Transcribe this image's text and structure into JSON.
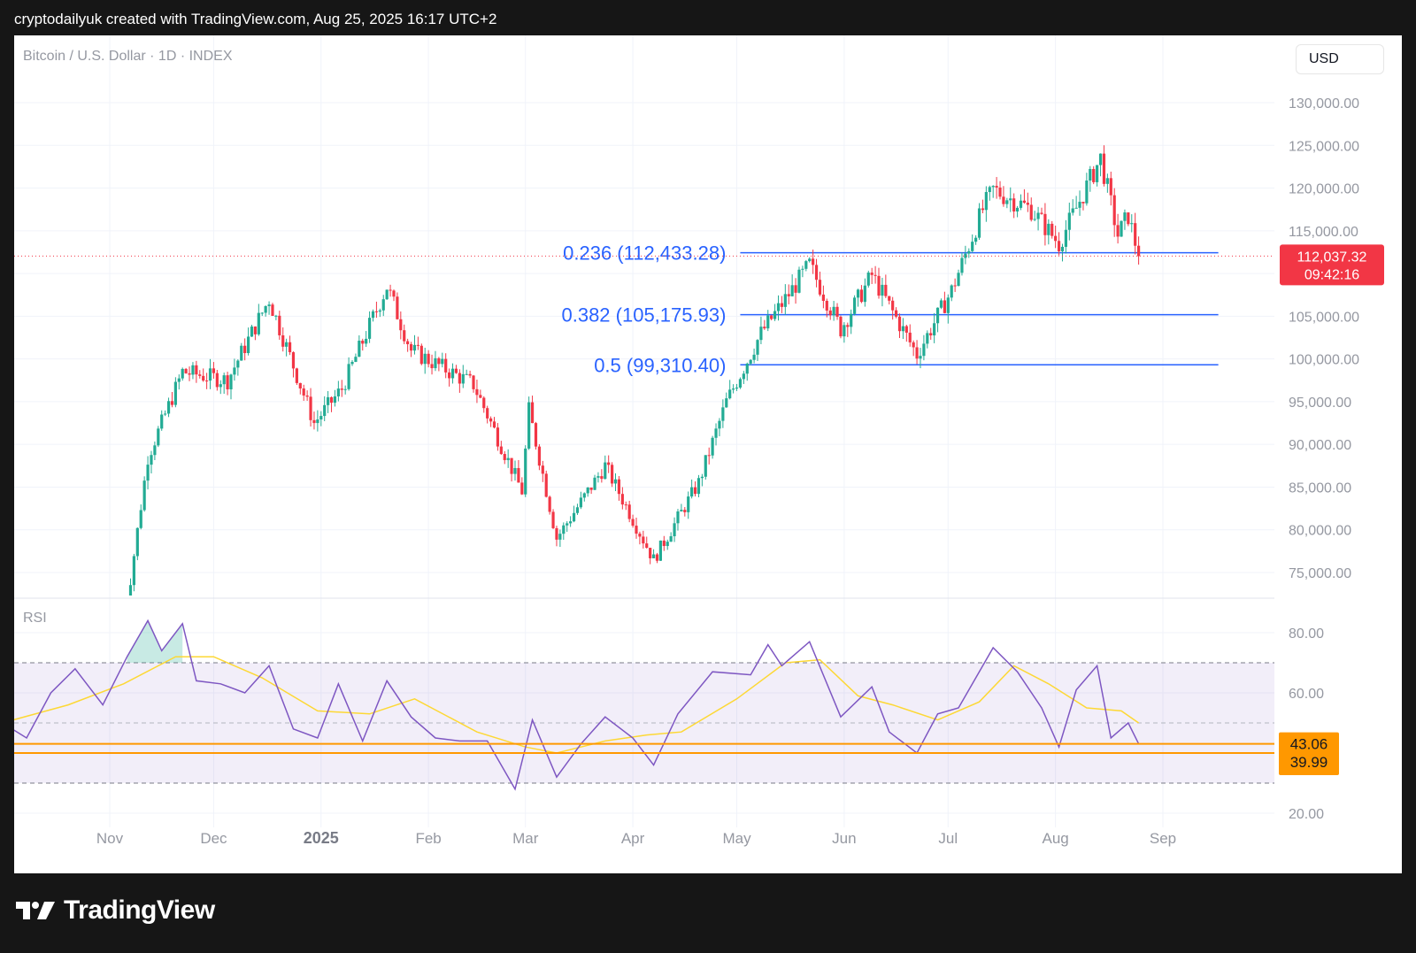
{
  "caption": "cryptodailyuk created with TradingView.com, Aug 25, 2025 16:17 UTC+2",
  "footer_brand": "TradingView",
  "currency_button": "USD",
  "chart_data": [
    {
      "type": "candlestick",
      "title": "Bitcoin / U.S. Dollar · 1D · INDEX",
      "y_axis": {
        "ticks": [
          "130,000.00",
          "125,000.00",
          "120,000.00",
          "115,000.00",
          "105,000.00",
          "100,000.00",
          "95,000.00",
          "90,000.00",
          "85,000.00",
          "80,000.00",
          "75,000.00"
        ],
        "tick_values": [
          130000,
          125000,
          120000,
          115000,
          105000,
          100000,
          95000,
          90000,
          85000,
          80000,
          75000
        ],
        "range": [
          73000,
          138000
        ]
      },
      "x_axis": {
        "labels": [
          "Nov",
          "Dec",
          "2025",
          "Feb",
          "Mar",
          "Apr",
          "May",
          "Jun",
          "Jul",
          "Aug",
          "Sep"
        ],
        "label_dates": [
          "2024-11-01",
          "2024-12-01",
          "2025-01-01",
          "2025-02-01",
          "2025-03-01",
          "2025-04-01",
          "2025-05-01",
          "2025-06-01",
          "2025-07-01",
          "2025-08-01",
          "2025-09-01"
        ],
        "range": [
          "2024-10-01",
          "2025-10-01"
        ]
      },
      "price_path": [
        [
          "2024-11-05",
          68500
        ],
        [
          "2024-11-12",
          88500
        ],
        [
          "2024-11-22",
          98500
        ],
        [
          "2024-12-05",
          97500
        ],
        [
          "2024-12-17",
          107000
        ],
        [
          "2024-12-30",
          92500
        ],
        [
          "2025-01-07",
          96500
        ],
        [
          "2025-01-20",
          108500
        ],
        [
          "2025-01-27",
          101000
        ],
        [
          "2025-02-14",
          97000
        ],
        [
          "2025-02-28",
          84500
        ],
        [
          "2025-03-02",
          94000
        ],
        [
          "2025-03-10",
          79000
        ],
        [
          "2025-03-24",
          87500
        ],
        [
          "2025-04-07",
          76500
        ],
        [
          "2025-04-20",
          85500
        ],
        [
          "2025-04-28",
          95000
        ],
        [
          "2025-05-08",
          103000
        ],
        [
          "2025-05-22",
          111000
        ],
        [
          "2025-05-31",
          103500
        ],
        [
          "2025-06-09",
          109800
        ],
        [
          "2025-06-22",
          100500
        ],
        [
          "2025-07-02",
          108000
        ],
        [
          "2025-07-11",
          117500
        ],
        [
          "2025-07-14",
          119800
        ],
        [
          "2025-07-25",
          117500
        ],
        [
          "2025-08-02",
          113500
        ],
        [
          "2025-08-14",
          123500
        ],
        [
          "2025-08-19",
          114500
        ],
        [
          "2025-08-22",
          116800
        ],
        [
          "2025-08-25",
          112037
        ]
      ],
      "fib_levels": [
        {
          "ratio": "0.236",
          "value": 112433.28,
          "label": "0.236 (112,433.28)"
        },
        {
          "ratio": "0.382",
          "value": 105175.93,
          "label": "0.382 (105,175.93)"
        },
        {
          "ratio": "0.5",
          "value": 99310.4,
          "label": "0.5 (99,310.40)"
        }
      ],
      "fib_start_date": "2025-05-02",
      "fib_end_date": "2025-09-17",
      "last_price": {
        "value": 112037.32,
        "label": "112,037.32",
        "countdown": "09:42:16"
      },
      "colors": {
        "up": "#22ab94",
        "down": "#f23645",
        "fib": "#2962ff",
        "last_price": "#f23645",
        "grid": "#f0f3fa"
      }
    },
    {
      "type": "line",
      "title": "RSI",
      "y_axis": {
        "ticks": [
          "80.00",
          "60.00",
          "20.00"
        ],
        "tick_values": [
          80,
          60,
          20
        ],
        "range": [
          14,
          86
        ]
      },
      "bands": {
        "upper": 70,
        "middle": 50,
        "lower": 30
      },
      "rsi_path": [
        [
          "2024-10-01",
          50
        ],
        [
          "2024-10-08",
          45
        ],
        [
          "2024-10-15",
          60
        ],
        [
          "2024-10-22",
          68
        ],
        [
          "2024-10-30",
          56
        ],
        [
          "2024-11-06",
          72
        ],
        [
          "2024-11-12",
          84
        ],
        [
          "2024-11-16",
          74
        ],
        [
          "2024-11-22",
          83
        ],
        [
          "2024-11-26",
          64
        ],
        [
          "2024-12-03",
          63
        ],
        [
          "2024-12-10",
          60
        ],
        [
          "2024-12-17",
          69
        ],
        [
          "2024-12-24",
          48
        ],
        [
          "2024-12-31",
          45
        ],
        [
          "2025-01-06",
          63
        ],
        [
          "2025-01-13",
          44
        ],
        [
          "2025-01-20",
          64
        ],
        [
          "2025-01-27",
          52
        ],
        [
          "2025-02-03",
          45
        ],
        [
          "2025-02-10",
          44
        ],
        [
          "2025-02-18",
          44
        ],
        [
          "2025-02-26",
          28
        ],
        [
          "2025-03-03",
          51
        ],
        [
          "2025-03-10",
          32
        ],
        [
          "2025-03-17",
          43
        ],
        [
          "2025-03-24",
          52
        ],
        [
          "2025-04-01",
          45
        ],
        [
          "2025-04-07",
          36
        ],
        [
          "2025-04-14",
          53
        ],
        [
          "2025-04-24",
          67
        ],
        [
          "2025-05-05",
          66
        ],
        [
          "2025-05-10",
          76
        ],
        [
          "2025-05-14",
          69
        ],
        [
          "2025-05-22",
          77
        ],
        [
          "2025-05-31",
          52
        ],
        [
          "2025-06-09",
          62
        ],
        [
          "2025-06-14",
          47
        ],
        [
          "2025-06-22",
          40
        ],
        [
          "2025-06-28",
          53
        ],
        [
          "2025-07-04",
          55
        ],
        [
          "2025-07-14",
          75
        ],
        [
          "2025-07-21",
          67
        ],
        [
          "2025-07-28",
          55
        ],
        [
          "2025-08-02",
          42
        ],
        [
          "2025-08-07",
          61
        ],
        [
          "2025-08-13",
          69
        ],
        [
          "2025-08-17",
          45
        ],
        [
          "2025-08-22",
          50
        ],
        [
          "2025-08-25",
          43.06
        ]
      ],
      "ma_path": [
        [
          "2024-10-01",
          50
        ],
        [
          "2024-10-20",
          56
        ],
        [
          "2024-11-05",
          63
        ],
        [
          "2024-11-20",
          72
        ],
        [
          "2024-12-01",
          72
        ],
        [
          "2024-12-15",
          65
        ],
        [
          "2024-12-31",
          54
        ],
        [
          "2025-01-15",
          53
        ],
        [
          "2025-01-28",
          58
        ],
        [
          "2025-02-15",
          47
        ],
        [
          "2025-03-01",
          42
        ],
        [
          "2025-03-10",
          39.99
        ],
        [
          "2025-03-24",
          44
        ],
        [
          "2025-04-05",
          46
        ],
        [
          "2025-04-15",
          47
        ],
        [
          "2025-05-01",
          58
        ],
        [
          "2025-05-15",
          70
        ],
        [
          "2025-05-25",
          71
        ],
        [
          "2025-06-05",
          59
        ],
        [
          "2025-06-15",
          56
        ],
        [
          "2025-06-28",
          51
        ],
        [
          "2025-07-10",
          57
        ],
        [
          "2025-07-20",
          69
        ],
        [
          "2025-07-30",
          63
        ],
        [
          "2025-08-10",
          55
        ],
        [
          "2025-08-20",
          54
        ],
        [
          "2025-08-25",
          50
        ]
      ],
      "horizontal_lines": [
        {
          "value": 43.06,
          "label": "43.06"
        },
        {
          "value": 39.99,
          "label": "39.99"
        }
      ],
      "colors": {
        "rsi": "#7e57c2",
        "ma": "#fdd835",
        "band_fill": "#7e57c2",
        "level_line": "#ff9800",
        "ob_fill": "#22ab94"
      }
    }
  ]
}
